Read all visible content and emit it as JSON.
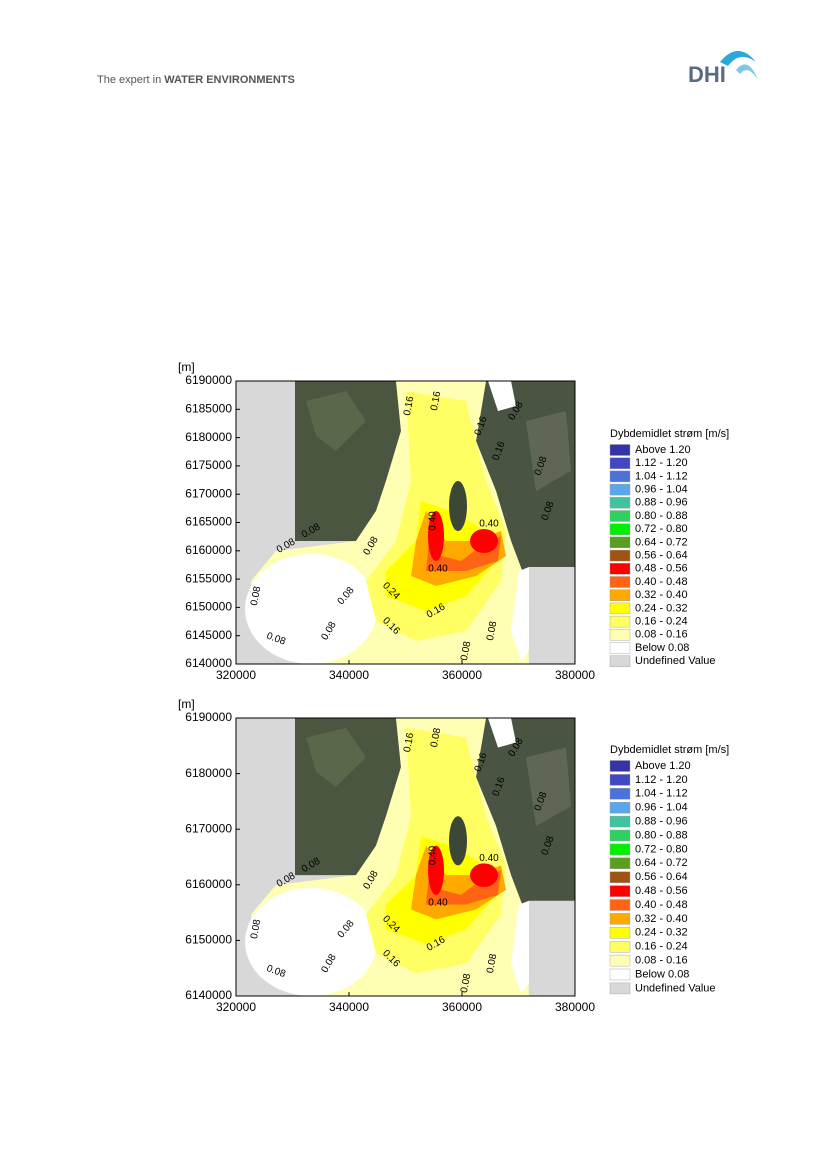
{
  "header": {
    "tagline_prefix": "The expert in",
    "tagline_emphasis": "WATER ENVIRONMENTS",
    "logo": "DHI"
  },
  "figures": [
    {
      "y_unit": "[m]",
      "xlim": [
        320000,
        380000
      ],
      "ylim": [
        6140000,
        6190000
      ],
      "xticks": [
        320000,
        340000,
        360000,
        380000
      ],
      "yticks": [
        6140000,
        6145000,
        6150000,
        6155000,
        6160000,
        6165000,
        6170000,
        6175000,
        6180000,
        6185000,
        6190000
      ],
      "legend_title": "Dybdemidlet strøm [m/s]",
      "legend": [
        {
          "label": "Above 1.20",
          "color": "#3434a8"
        },
        {
          "label": "1.12 - 1.20",
          "color": "#4048c4"
        },
        {
          "label": "1.04 - 1.12",
          "color": "#4a72d8"
        },
        {
          "label": "0.96 - 1.04",
          "color": "#5aa6ea"
        },
        {
          "label": "0.88 - 0.96",
          "color": "#40c4a0"
        },
        {
          "label": "0.80 - 0.88",
          "color": "#30d060"
        },
        {
          "label": "0.72 - 0.80",
          "color": "#00f000"
        },
        {
          "label": "0.64 - 0.72",
          "color": "#5a9e20"
        },
        {
          "label": "0.56 - 0.64",
          "color": "#a05414"
        },
        {
          "label": "0.48 - 0.56",
          "color": "#ff0000"
        },
        {
          "label": "0.40 - 0.48",
          "color": "#ff6414"
        },
        {
          "label": "0.32 - 0.40",
          "color": "#ffa800"
        },
        {
          "label": "0.24 - 0.32",
          "color": "#ffff00"
        },
        {
          "label": "0.16 - 0.24",
          "color": "#ffff64"
        },
        {
          "label": "0.08 - 0.16",
          "color": "#ffffb4"
        },
        {
          "label": "Below 0.08",
          "color": "#ffffff"
        },
        {
          "label": "Undefined Value",
          "color": "#d8d8d8"
        }
      ],
      "contour_labels": [
        "0.16",
        "0.16",
        "0.16",
        "0.16",
        "0.08",
        "0.08",
        "0.08",
        "0.08",
        "0.08",
        "0.08",
        "0.40",
        "0.40",
        "0.40",
        "0.24",
        "0.16",
        "0.16",
        "0.08",
        "0.08",
        "0.08",
        "0.08",
        "0.08",
        "0.08"
      ]
    },
    {
      "y_unit": "[m]",
      "xlim": [
        320000,
        380000
      ],
      "ylim": [
        6140000,
        6190000
      ],
      "xticks": [
        320000,
        340000,
        360000,
        380000
      ],
      "yticks": [
        6140000,
        6150000,
        6160000,
        6170000,
        6180000,
        6190000
      ],
      "legend_title": "Dybdemidlet strøm [m/s]",
      "legend": [
        {
          "label": "Above 1.20",
          "color": "#3434a8"
        },
        {
          "label": "1.12 - 1.20",
          "color": "#4048c4"
        },
        {
          "label": "1.04 - 1.12",
          "color": "#4a72d8"
        },
        {
          "label": "0.96 - 1.04",
          "color": "#5aa6ea"
        },
        {
          "label": "0.88 - 0.96",
          "color": "#40c4a0"
        },
        {
          "label": "0.80 - 0.88",
          "color": "#30d060"
        },
        {
          "label": "0.72 - 0.80",
          "color": "#00f000"
        },
        {
          "label": "0.64 - 0.72",
          "color": "#5a9e20"
        },
        {
          "label": "0.56 - 0.64",
          "color": "#a05414"
        },
        {
          "label": "0.48 - 0.56",
          "color": "#ff0000"
        },
        {
          "label": "0.40 - 0.48",
          "color": "#ff6414"
        },
        {
          "label": "0.32 - 0.40",
          "color": "#ffa800"
        },
        {
          "label": "0.24 - 0.32",
          "color": "#ffff00"
        },
        {
          "label": "0.16 - 0.24",
          "color": "#ffff64"
        },
        {
          "label": "0.08 - 0.16",
          "color": "#ffffb4"
        },
        {
          "label": "Below 0.08",
          "color": "#ffffff"
        },
        {
          "label": "Undefined Value",
          "color": "#d8d8d8"
        }
      ],
      "contour_labels": [
        "0.16",
        "0.08",
        "0.16",
        "0.16",
        "0.08",
        "0.08",
        "0.08",
        "0.08",
        "0.08",
        "0.08",
        "0.40",
        "0.40",
        "0.40",
        "0.24",
        "0.16",
        "0.16",
        "0.08",
        "0.08",
        "0.08",
        "0.08",
        "0.08",
        "0.08"
      ]
    }
  ]
}
